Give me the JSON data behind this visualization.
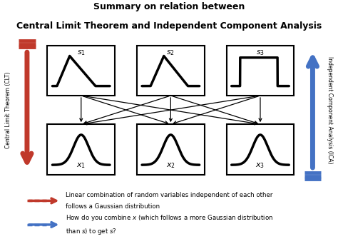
{
  "title_line1": "Summary on relation between",
  "title_line2": "Central Limit Theorem and Independent Component Analysis",
  "bg_color": "#ffffff",
  "box_edgecolor": "#000000",
  "box_facecolor": "#ffffff",
  "signal_color": "#000000",
  "top_labels": [
    "$s_1$",
    "$s_2$",
    "$s_3$"
  ],
  "bottom_labels": [
    "$x_1$",
    "$x_2$",
    "$x_3$"
  ],
  "left_label": "Central Limit Theorem (CLT)",
  "right_label": "Independent Component Analysis (ICA)",
  "legend_red_text1": "Linear combination of random variables independent of each other",
  "legend_red_text2": "follows a Gaussian distribution",
  "legend_blue_text1": "How do you combine $x$ (which follows a more Gaussian distribution",
  "legend_blue_text2": "than $s$) to get $s$?",
  "red_color": "#c0392b",
  "blue_color": "#4472c4",
  "arrow_color": "#000000",
  "fig_width": 4.74,
  "fig_height": 3.35,
  "dpi": 100
}
